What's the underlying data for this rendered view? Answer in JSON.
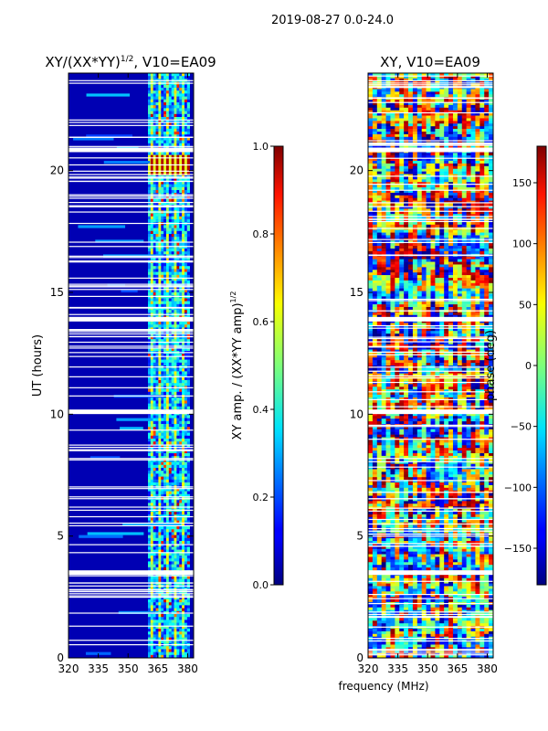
{
  "suptitle": "2019-08-27 0.0-24.0",
  "chart_data": [
    {
      "type": "heatmap",
      "title": "XY/(XX*YY)$^{1/2}$, V10=EA09",
      "title_main": "XY/(XX*YY)",
      "title_sup": "1/2",
      "title_tail": ", V10=EA09",
      "xlabel": "",
      "ylabel": "UT (hours)",
      "xlim": [
        320,
        383
      ],
      "ylim": [
        0,
        24
      ],
      "x_ticks": [
        320,
        335,
        350,
        365,
        380
      ],
      "y_ticks": [
        0,
        5,
        10,
        15,
        20
      ],
      "colormap": "jet",
      "colorbar": {
        "label_main": "XY amp. / (XX*YY amp)",
        "label_sup": "1/2",
        "range": [
          0.0,
          1.0
        ],
        "ticks": [
          "0.0",
          "0.2",
          "0.4",
          "0.6",
          "0.8",
          "1.0"
        ]
      },
      "features": {
        "background_value": 0.05,
        "rfi_band_mhz": [
          360,
          381
        ],
        "rfi_band_value": 0.35,
        "strong_rfi_ut_hours": [
          19.8,
          20.7
        ],
        "strong_rfi_value": 0.95,
        "flagged_gaps_ut_hours": [
          3.5,
          10.1,
          13.9,
          20.85
        ]
      }
    },
    {
      "type": "heatmap",
      "title": "XY, V10=EA09",
      "xlabel": "frequency (MHz)",
      "ylabel": "",
      "xlim": [
        320,
        383
      ],
      "ylim": [
        0,
        24
      ],
      "x_ticks": [
        320,
        335,
        350,
        365,
        380
      ],
      "y_ticks": [
        0,
        5,
        10,
        15,
        20
      ],
      "colormap": "jet",
      "colorbar": {
        "label": "phase (deg)",
        "range": [
          -180,
          180
        ],
        "ticks": [
          "150",
          "100",
          "50",
          "0",
          "−50",
          "−100",
          "−150"
        ]
      },
      "features": {
        "value_type": "phase_degrees",
        "noisy_wrapping_phase": true,
        "flagged_gaps_ut_hours": [
          3.5,
          10.1,
          13.9,
          20.85
        ]
      }
    }
  ],
  "labels": {
    "left_x_ticks": [
      "320",
      "335",
      "350",
      "365",
      "380"
    ],
    "left_y_ticks": [
      "0",
      "5",
      "10",
      "15",
      "20"
    ],
    "right_x_ticks": [
      "320",
      "335",
      "350",
      "365",
      "380"
    ],
    "right_y_ticks": [
      "0",
      "5",
      "10",
      "15",
      "20"
    ],
    "cb1_ticks": [
      "0.0",
      "0.2",
      "0.4",
      "0.6",
      "0.8",
      "1.0"
    ],
    "cb2_ticks": [
      "150",
      "100",
      "50",
      "0",
      "−50",
      "−100",
      "−150"
    ],
    "left_ylabel": "UT (hours)",
    "right_xlabel": "frequency (MHz)",
    "cb2_label": "phase (deg)"
  }
}
